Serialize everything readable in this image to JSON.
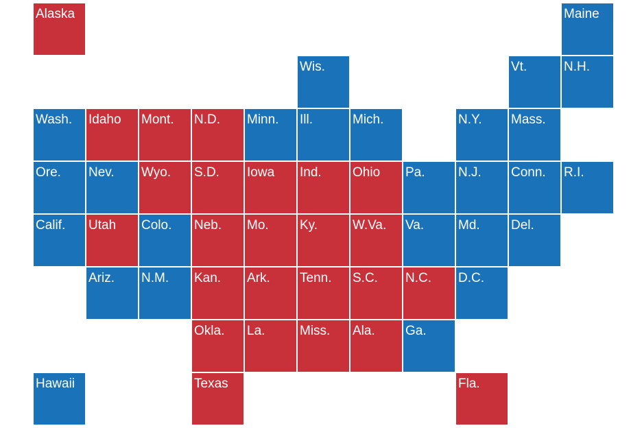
{
  "colors": {
    "red": "#c9313a",
    "blue": "#1a72b8"
  },
  "states": [
    {
      "label": "Alaska",
      "row": 0,
      "col": 0,
      "party": "red"
    },
    {
      "label": "Maine",
      "row": 0,
      "col": 10,
      "party": "blue"
    },
    {
      "label": "Wis.",
      "row": 1,
      "col": 5,
      "party": "blue"
    },
    {
      "label": "Vt.",
      "row": 1,
      "col": 9,
      "party": "blue"
    },
    {
      "label": "N.H.",
      "row": 1,
      "col": 10,
      "party": "blue"
    },
    {
      "label": "Wash.",
      "row": 2,
      "col": 0,
      "party": "blue"
    },
    {
      "label": "Idaho",
      "row": 2,
      "col": 1,
      "party": "red"
    },
    {
      "label": "Mont.",
      "row": 2,
      "col": 2,
      "party": "red"
    },
    {
      "label": "N.D.",
      "row": 2,
      "col": 3,
      "party": "red"
    },
    {
      "label": "Minn.",
      "row": 2,
      "col": 4,
      "party": "blue"
    },
    {
      "label": "Ill.",
      "row": 2,
      "col": 5,
      "party": "blue"
    },
    {
      "label": "Mich.",
      "row": 2,
      "col": 6,
      "party": "blue"
    },
    {
      "label": "N.Y.",
      "row": 2,
      "col": 8,
      "party": "blue"
    },
    {
      "label": "Mass.",
      "row": 2,
      "col": 9,
      "party": "blue"
    },
    {
      "label": "Ore.",
      "row": 3,
      "col": 0,
      "party": "blue"
    },
    {
      "label": "Nev.",
      "row": 3,
      "col": 1,
      "party": "blue"
    },
    {
      "label": "Wyo.",
      "row": 3,
      "col": 2,
      "party": "red"
    },
    {
      "label": "S.D.",
      "row": 3,
      "col": 3,
      "party": "red"
    },
    {
      "label": "Iowa",
      "row": 3,
      "col": 4,
      "party": "red"
    },
    {
      "label": "Ind.",
      "row": 3,
      "col": 5,
      "party": "red"
    },
    {
      "label": "Ohio",
      "row": 3,
      "col": 6,
      "party": "red"
    },
    {
      "label": "Pa.",
      "row": 3,
      "col": 7,
      "party": "blue"
    },
    {
      "label": "N.J.",
      "row": 3,
      "col": 8,
      "party": "blue"
    },
    {
      "label": "Conn.",
      "row": 3,
      "col": 9,
      "party": "blue"
    },
    {
      "label": "R.I.",
      "row": 3,
      "col": 10,
      "party": "blue"
    },
    {
      "label": "Calif.",
      "row": 4,
      "col": 0,
      "party": "blue"
    },
    {
      "label": "Utah",
      "row": 4,
      "col": 1,
      "party": "red"
    },
    {
      "label": "Colo.",
      "row": 4,
      "col": 2,
      "party": "blue"
    },
    {
      "label": "Neb.",
      "row": 4,
      "col": 3,
      "party": "red"
    },
    {
      "label": "Mo.",
      "row": 4,
      "col": 4,
      "party": "red"
    },
    {
      "label": "Ky.",
      "row": 4,
      "col": 5,
      "party": "red"
    },
    {
      "label": "W.Va.",
      "row": 4,
      "col": 6,
      "party": "red"
    },
    {
      "label": "Va.",
      "row": 4,
      "col": 7,
      "party": "blue"
    },
    {
      "label": "Md.",
      "row": 4,
      "col": 8,
      "party": "blue"
    },
    {
      "label": "Del.",
      "row": 4,
      "col": 9,
      "party": "blue"
    },
    {
      "label": "Ariz.",
      "row": 5,
      "col": 1,
      "party": "blue"
    },
    {
      "label": "N.M.",
      "row": 5,
      "col": 2,
      "party": "blue"
    },
    {
      "label": "Kan.",
      "row": 5,
      "col": 3,
      "party": "red"
    },
    {
      "label": "Ark.",
      "row": 5,
      "col": 4,
      "party": "red"
    },
    {
      "label": "Tenn.",
      "row": 5,
      "col": 5,
      "party": "red"
    },
    {
      "label": "S.C.",
      "row": 5,
      "col": 6,
      "party": "red"
    },
    {
      "label": "N.C.",
      "row": 5,
      "col": 7,
      "party": "red"
    },
    {
      "label": "D.C.",
      "row": 5,
      "col": 8,
      "party": "blue"
    },
    {
      "label": "Okla.",
      "row": 6,
      "col": 3,
      "party": "red"
    },
    {
      "label": "La.",
      "row": 6,
      "col": 4,
      "party": "red"
    },
    {
      "label": "Miss.",
      "row": 6,
      "col": 5,
      "party": "red"
    },
    {
      "label": "Ala.",
      "row": 6,
      "col": 6,
      "party": "red"
    },
    {
      "label": "Ga.",
      "row": 6,
      "col": 7,
      "party": "blue"
    },
    {
      "label": "Hawaii",
      "row": 7,
      "col": 0,
      "party": "blue"
    },
    {
      "label": "Texas",
      "row": 7,
      "col": 3,
      "party": "red"
    },
    {
      "label": "Fla.",
      "row": 7,
      "col": 8,
      "party": "red"
    }
  ]
}
